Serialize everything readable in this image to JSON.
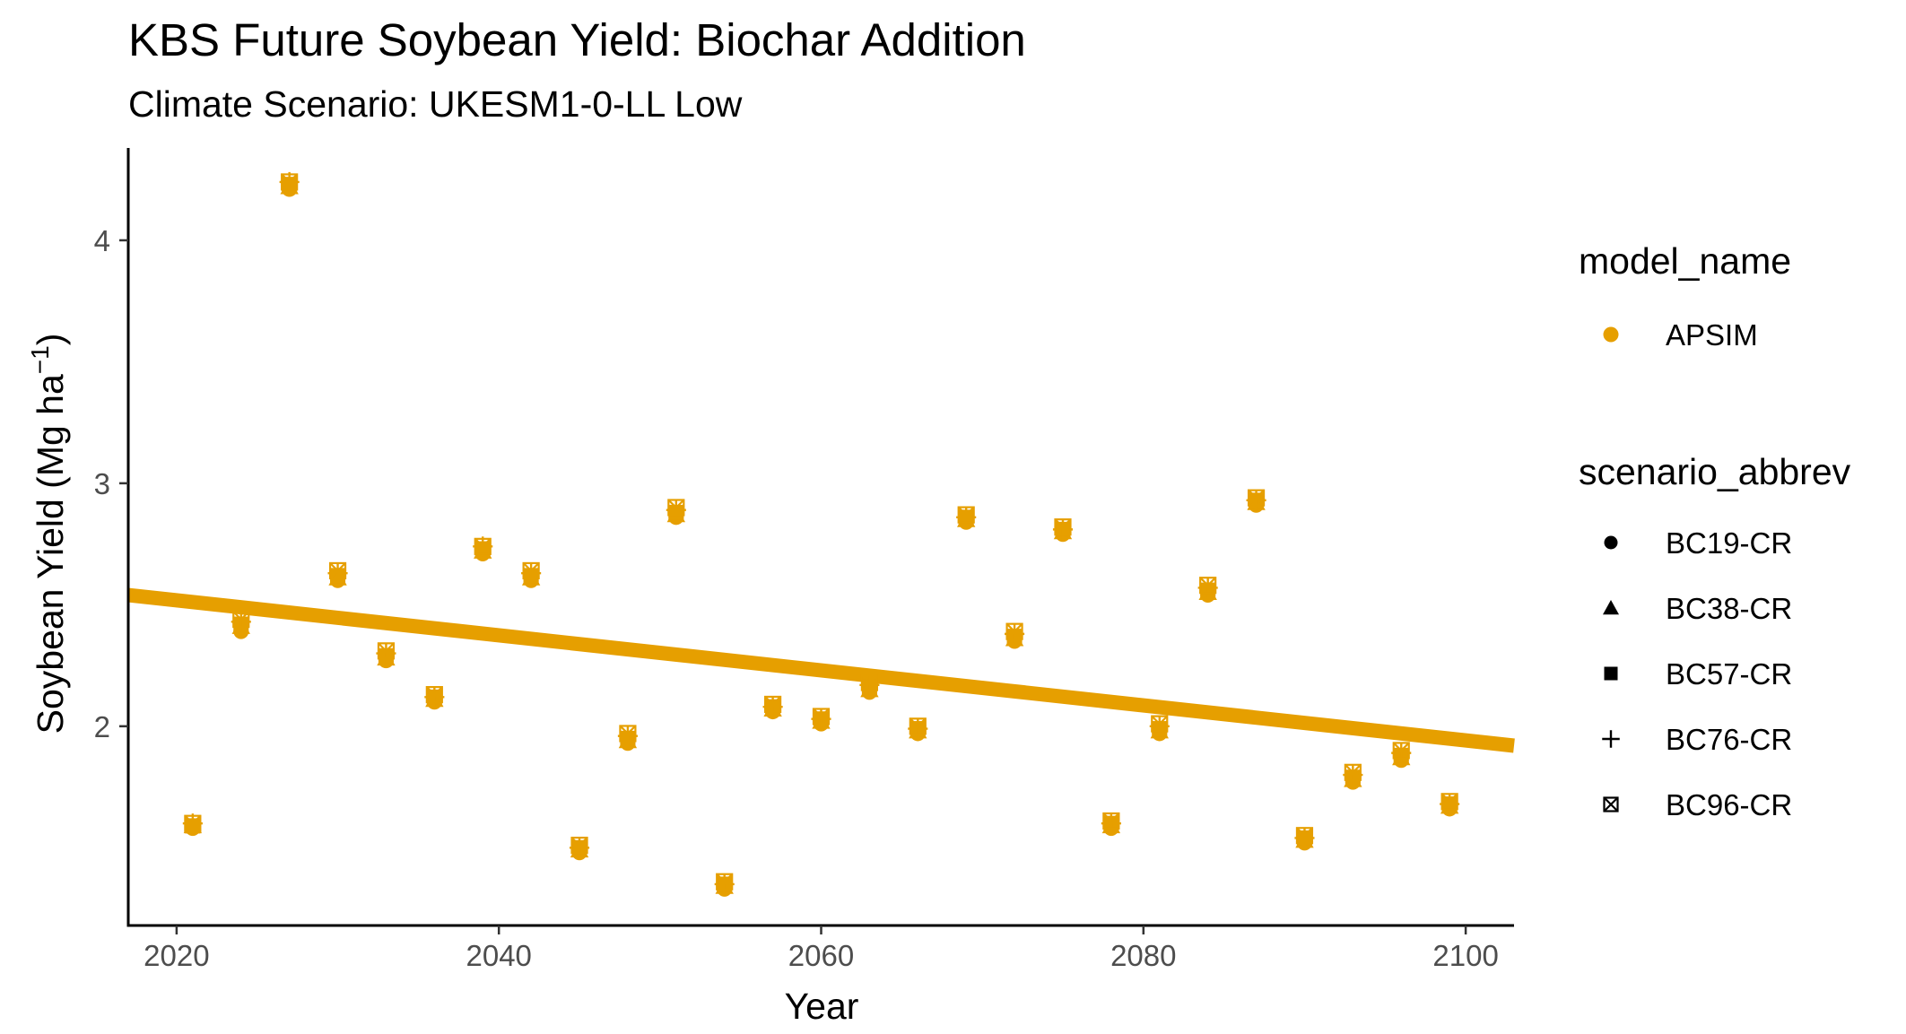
{
  "chart_data": {
    "type": "scatter",
    "title": "KBS Future Soybean Yield: Biochar Addition",
    "subtitle": "Climate Scenario: UKESM1-0-LL Low",
    "xlabel": "Year",
    "ylabel_main": "Soybean Yield (Mg ha",
    "ylabel_sup": "−1",
    "ylabel_close": ")",
    "xlim": [
      2017,
      2103
    ],
    "ylim": [
      1.18,
      4.38
    ],
    "x_ticks": [
      2020,
      2040,
      2060,
      2080,
      2100
    ],
    "y_ticks": [
      2,
      3,
      4
    ],
    "grid": false,
    "color": "#E69F00",
    "legend": {
      "position": "right",
      "color_title": "model_name",
      "color_items": [
        {
          "label": "APSIM",
          "color": "#E69F00"
        }
      ],
      "shape_title": "scenario_abbrev",
      "shape_items": [
        {
          "label": "BC19-CR",
          "shape": "circle"
        },
        {
          "label": "BC38-CR",
          "shape": "triangle"
        },
        {
          "label": "BC57-CR",
          "shape": "square"
        },
        {
          "label": "BC76-CR",
          "shape": "plus"
        },
        {
          "label": "BC96-CR",
          "shape": "square-cross"
        }
      ]
    },
    "x": [
      2021,
      2024,
      2027,
      2030,
      2033,
      2036,
      2039,
      2042,
      2045,
      2048,
      2051,
      2054,
      2057,
      2060,
      2063,
      2066,
      2069,
      2072,
      2075,
      2078,
      2081,
      2084,
      2087,
      2090,
      2093,
      2096,
      2099
    ],
    "series": [
      {
        "name": "BC19-CR",
        "shape": "circle",
        "y": [
          1.58,
          2.39,
          4.21,
          2.6,
          2.27,
          2.1,
          2.71,
          2.6,
          1.48,
          1.93,
          2.86,
          1.33,
          2.06,
          2.01,
          2.14,
          1.97,
          2.84,
          2.35,
          2.79,
          1.58,
          1.97,
          2.54,
          2.91,
          1.52,
          1.77,
          1.86,
          1.66
        ]
      },
      {
        "name": "BC38-CR",
        "shape": "triangle",
        "y": [
          1.59,
          2.41,
          4.22,
          2.61,
          2.28,
          2.11,
          2.72,
          2.61,
          1.49,
          1.94,
          2.87,
          1.34,
          2.07,
          2.02,
          2.15,
          1.98,
          2.85,
          2.36,
          2.8,
          1.59,
          1.98,
          2.55,
          2.92,
          1.53,
          1.78,
          1.87,
          1.67
        ]
      },
      {
        "name": "BC57-CR",
        "shape": "square",
        "y": [
          1.59,
          2.42,
          4.23,
          2.62,
          2.29,
          2.12,
          2.73,
          2.62,
          1.5,
          1.95,
          2.88,
          1.35,
          2.08,
          2.03,
          2.16,
          1.99,
          2.86,
          2.37,
          2.81,
          1.6,
          1.99,
          2.56,
          2.93,
          1.54,
          1.79,
          1.88,
          1.68
        ]
      },
      {
        "name": "BC76-CR",
        "shape": "plus",
        "y": [
          1.6,
          2.43,
          4.24,
          2.63,
          2.3,
          2.12,
          2.74,
          2.63,
          1.5,
          1.96,
          2.89,
          1.35,
          2.08,
          2.03,
          2.17,
          1.99,
          2.86,
          2.38,
          2.81,
          1.6,
          2.0,
          2.57,
          2.93,
          1.54,
          1.8,
          1.89,
          1.68
        ]
      },
      {
        "name": "BC96-CR",
        "shape": "square-cross",
        "y": [
          1.6,
          2.44,
          4.24,
          2.64,
          2.31,
          2.13,
          2.74,
          2.64,
          1.51,
          1.97,
          2.9,
          1.36,
          2.09,
          2.04,
          2.18,
          2.0,
          2.87,
          2.39,
          2.82,
          1.61,
          2.01,
          2.58,
          2.94,
          1.55,
          1.81,
          1.9,
          1.69
        ]
      }
    ],
    "trend_line": {
      "x": [
        2017,
        2103
      ],
      "y": [
        2.54,
        1.92
      ]
    }
  }
}
